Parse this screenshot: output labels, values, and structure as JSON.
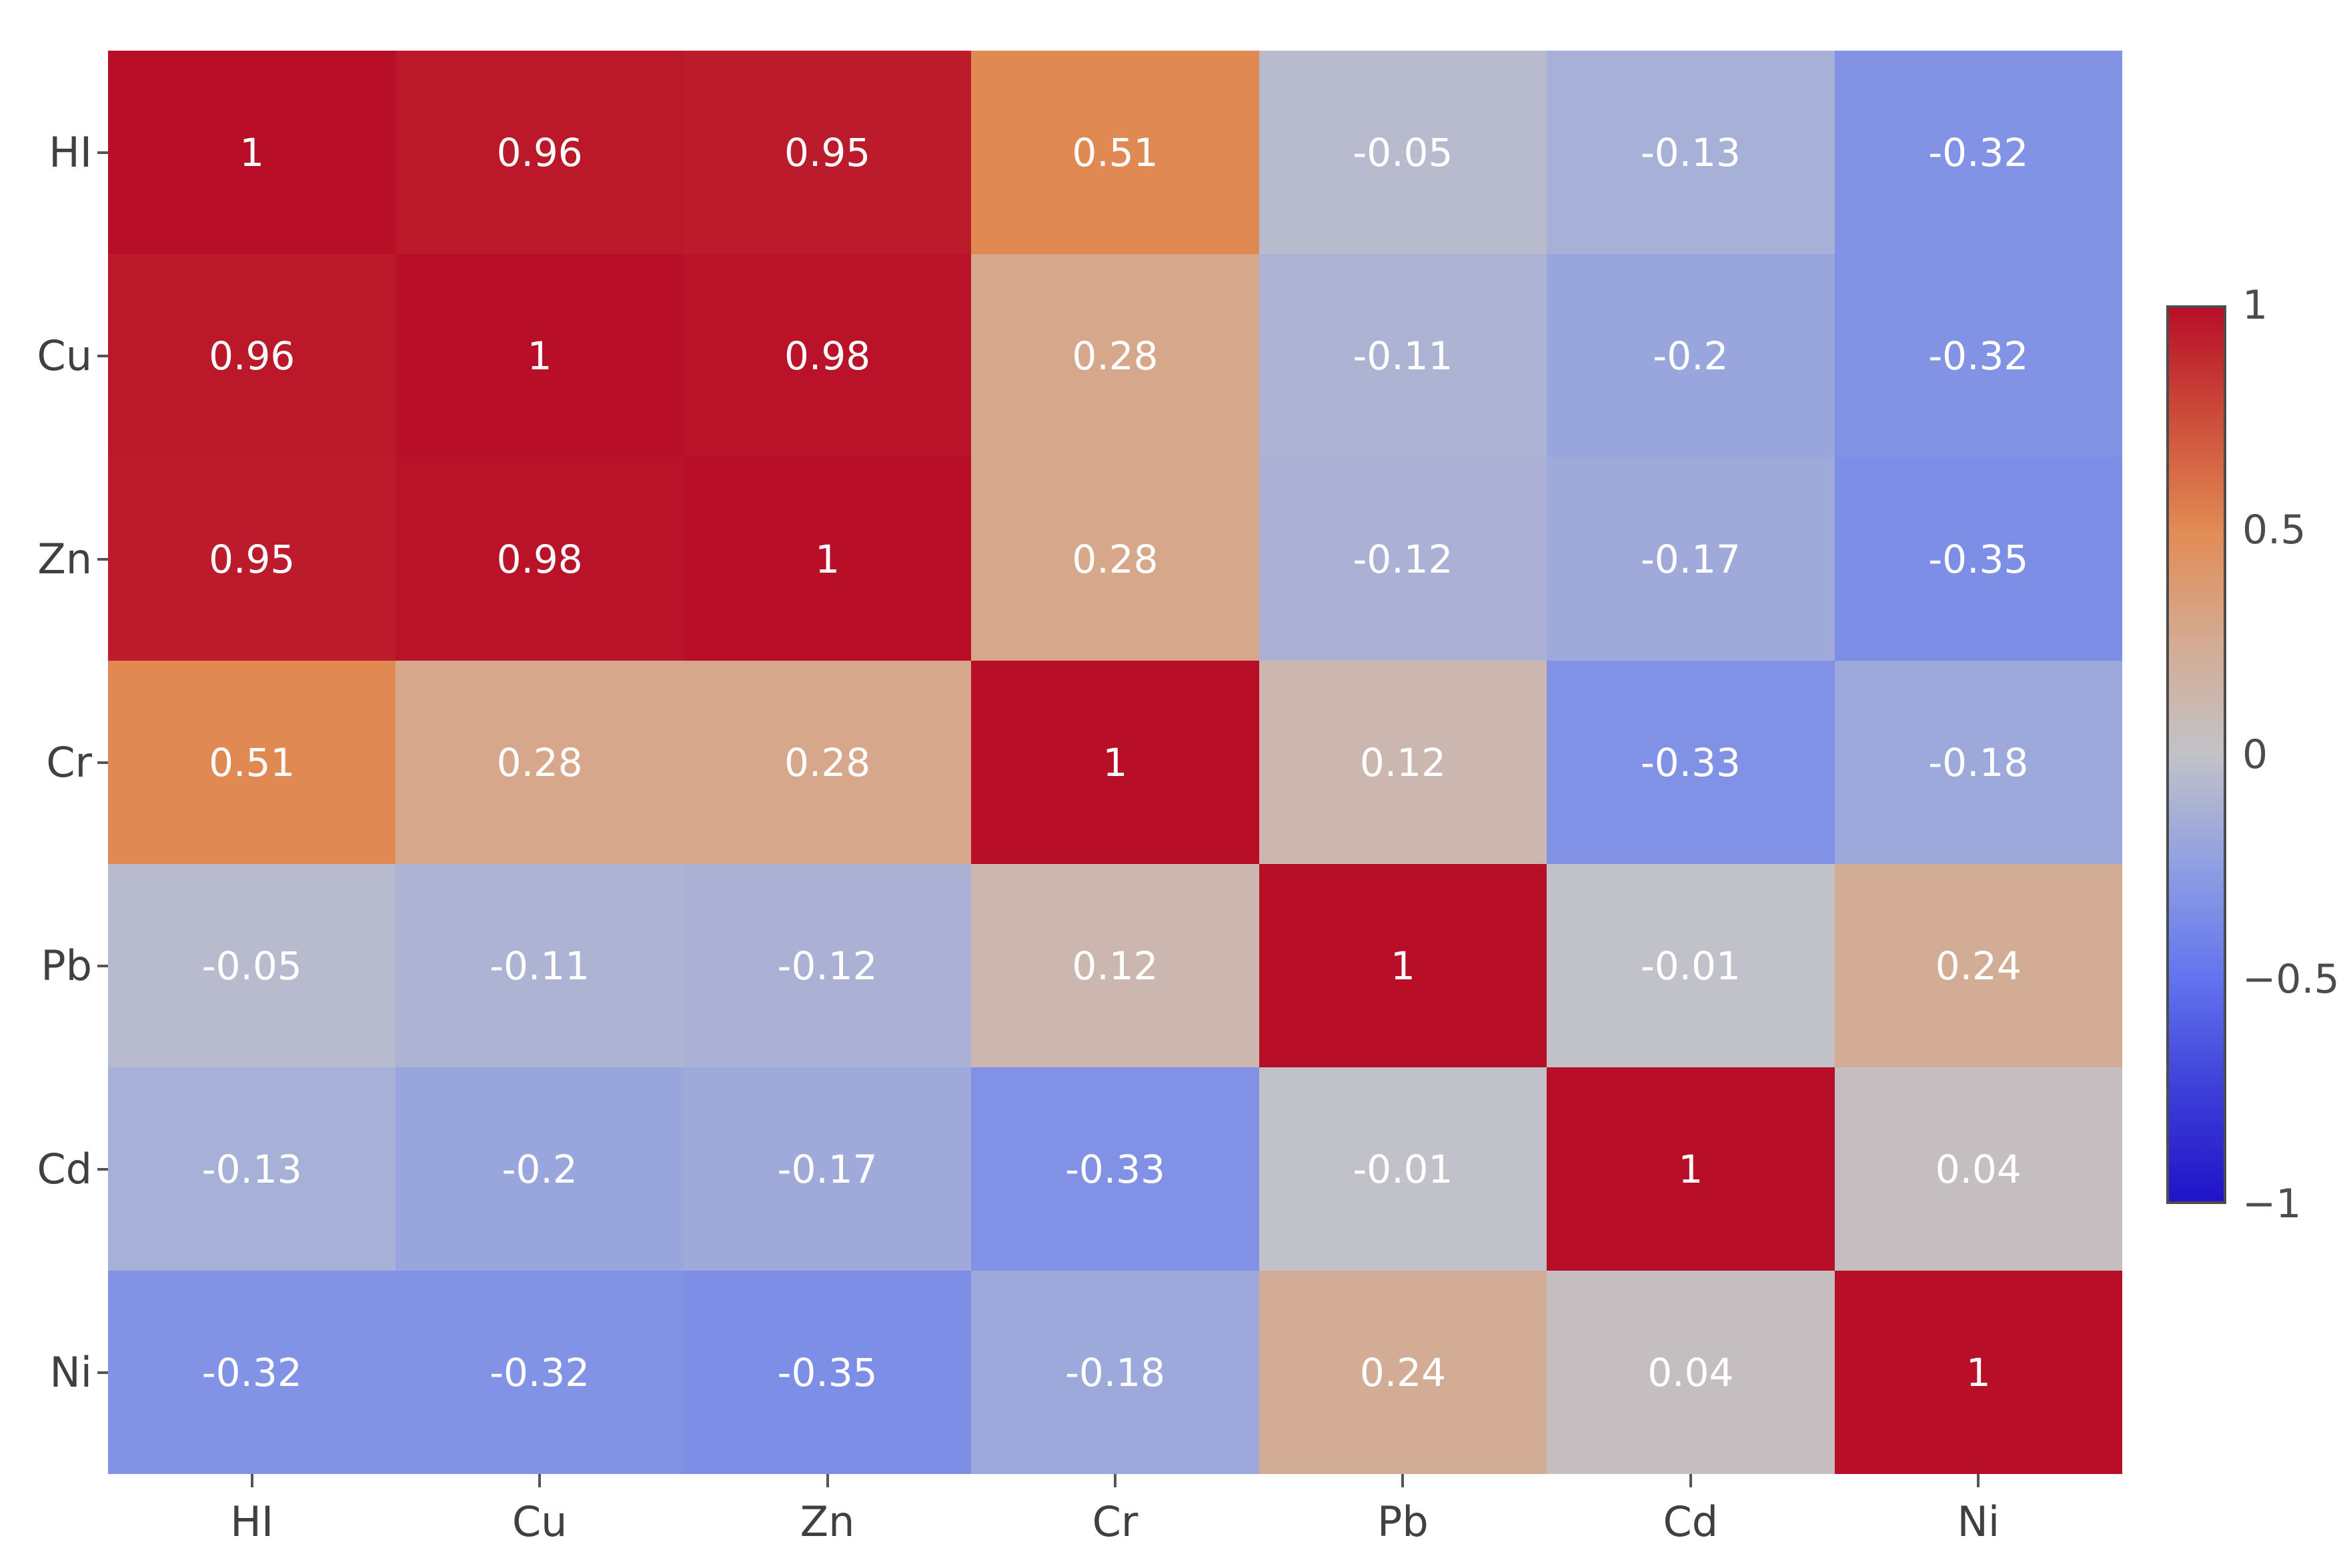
{
  "chart_data": {
    "type": "heatmap",
    "title": "",
    "xlabel": "",
    "ylabel": "",
    "categories": [
      "HI",
      "Cu",
      "Zn",
      "Cr",
      "Pb",
      "Cd",
      "Ni"
    ],
    "matrix": [
      [
        1,
        0.96,
        0.95,
        0.51,
        -0.05,
        -0.13,
        -0.32
      ],
      [
        0.96,
        1,
        0.98,
        0.28,
        -0.11,
        -0.2,
        -0.32
      ],
      [
        0.95,
        0.98,
        1,
        0.28,
        -0.12,
        -0.17,
        -0.35
      ],
      [
        0.51,
        0.28,
        0.28,
        1,
        0.12,
        -0.33,
        -0.18
      ],
      [
        -0.05,
        -0.11,
        -0.12,
        0.12,
        1,
        -0.01,
        0.24
      ],
      [
        -0.13,
        -0.2,
        -0.17,
        -0.33,
        -0.01,
        1,
        0.04
      ],
      [
        -0.32,
        -0.32,
        -0.35,
        -0.18,
        0.24,
        0.04,
        1
      ]
    ],
    "value_range": [
      -1,
      1
    ],
    "grid": false,
    "legend_position": "right",
    "colorbar": {
      "tick_labels": [
        "1",
        "0.5",
        "0",
        "−0.5",
        "−1"
      ],
      "tick_values": [
        1,
        0.5,
        0,
        -0.5,
        -1
      ]
    },
    "colormap_stops": [
      {
        "v": -1.0,
        "c": "#2013c8"
      },
      {
        "v": -0.75,
        "c": "#3d3fd8"
      },
      {
        "v": -0.5,
        "c": "#6274ee"
      },
      {
        "v": -0.25,
        "c": "#8f9fe2"
      },
      {
        "v": 0.0,
        "c": "#c2c2c8"
      },
      {
        "v": 0.25,
        "c": "#d4ab93"
      },
      {
        "v": 0.5,
        "c": "#e28b54"
      },
      {
        "v": 0.75,
        "c": "#cc4e3a"
      },
      {
        "v": 1.0,
        "c": "#b80e27"
      }
    ],
    "colors": {
      "background": "#ffffff",
      "cell_text": "#ffffff",
      "axis_label": "#404040",
      "tick_mark": "#555555",
      "colorbar_border": "#4c4c4c",
      "colorbar_label": "#4c4c4c"
    }
  }
}
